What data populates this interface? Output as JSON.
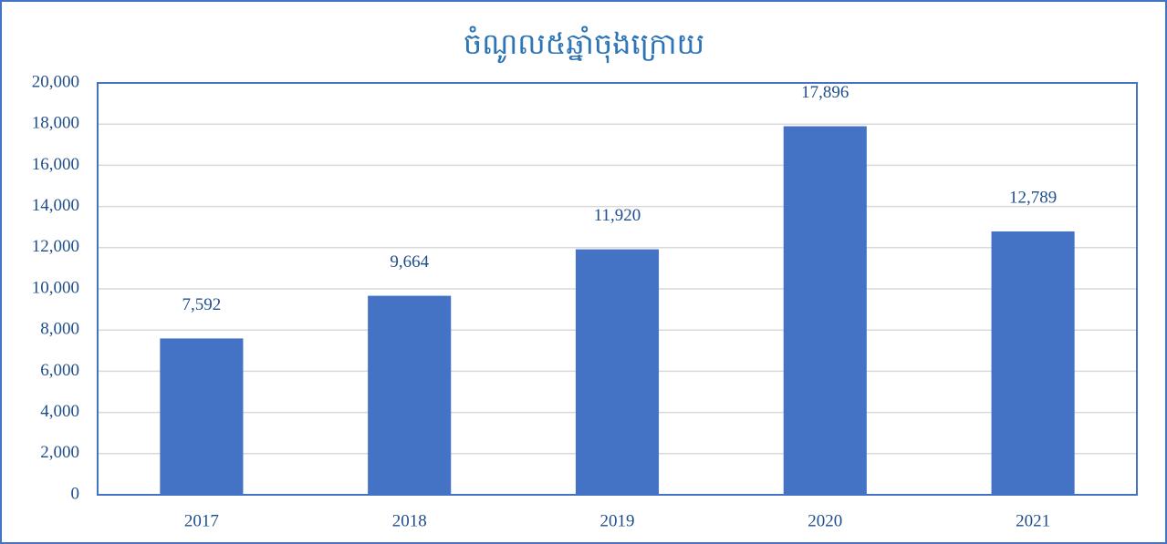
{
  "chart_data": {
    "type": "bar",
    "title": "ចំណូល៥ឆ្នាំចុងក្រោយ",
    "categories": [
      "2017",
      "2018",
      "2019",
      "2020",
      "2021"
    ],
    "values": [
      7592,
      9664,
      11920,
      17896,
      12789
    ],
    "value_labels": [
      "7,592",
      "9,664",
      "11,920",
      "17,896",
      "12,789"
    ],
    "color": "#4472c4",
    "ylim": [
      0,
      20000
    ],
    "yticks": [
      0,
      {
        "value": 2000,
        "label": "2,000"
      },
      {
        "value": 4000,
        "label": "4,000"
      },
      {
        "value": 6000,
        "label": "6,000"
      },
      {
        "value": 8000,
        "label": "8,000"
      },
      {
        "value": 10000,
        "label": "10,000"
      },
      {
        "value": 12000,
        "label": "12,000"
      },
      {
        "value": 14000,
        "label": "14,000"
      },
      {
        "value": 16000,
        "label": "16,000"
      },
      {
        "value": 18000,
        "label": "18,000"
      },
      {
        "value": 20000,
        "label": "20,000"
      }
    ],
    "grid": true
  }
}
